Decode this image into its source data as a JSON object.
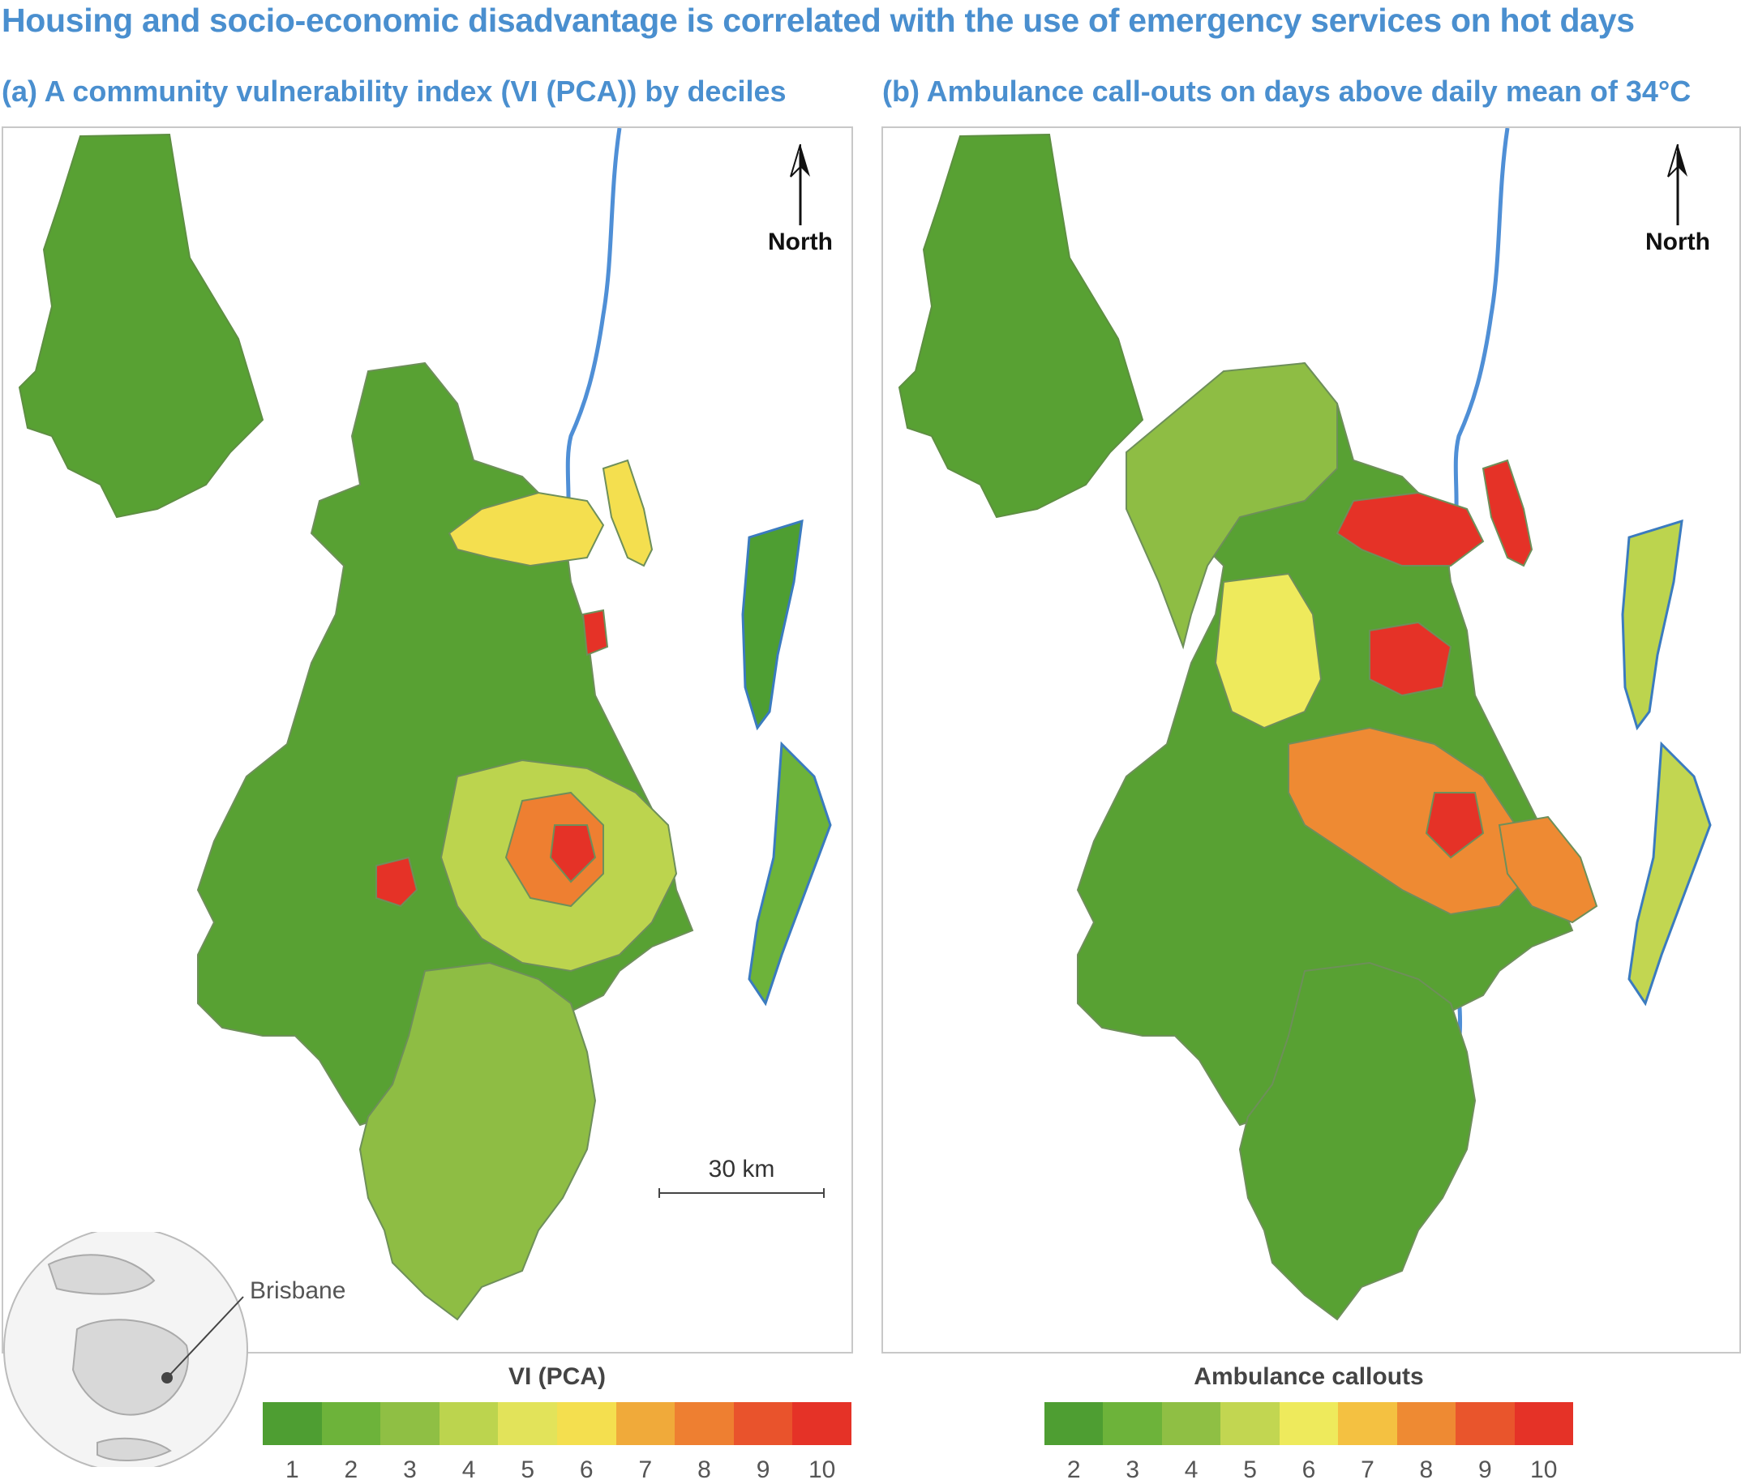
{
  "title": "Housing and socio-economic disadvantage is correlated with the use of emergency services on hot days",
  "panel_a": {
    "subtitle": "(a) A community vulnerability index (VI (PCA)) by deciles",
    "north_label": "North",
    "scale_label": "30 km",
    "locator_label": "Brisbane",
    "legend": {
      "title": "VI (PCA)",
      "ticks": [
        "1",
        "2",
        "3",
        "4",
        "5",
        "6",
        "7",
        "8",
        "9",
        "10"
      ],
      "colors": [
        "#4e9e32",
        "#6db33a",
        "#8fbf44",
        "#bcd44e",
        "#e2e35a",
        "#f4df4f",
        "#f0aa3a",
        "#ee7f31",
        "#e9532c",
        "#e53227"
      ]
    }
  },
  "panel_b": {
    "subtitle": "(b) Ambulance call-outs on days above daily mean of 34°C",
    "north_label": "North",
    "legend": {
      "title": "Ambulance callouts",
      "ticks": [
        "2",
        "3",
        "4",
        "5",
        "6",
        "7",
        "8",
        "9",
        "10"
      ],
      "colors": [
        "#4e9e32",
        "#6db33a",
        "#8fbf44",
        "#c2d651",
        "#eeea5c",
        "#f4c141",
        "#ee8a33",
        "#e9552c",
        "#e53227"
      ]
    }
  }
}
